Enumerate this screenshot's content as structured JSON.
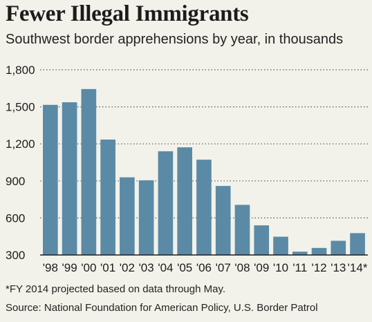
{
  "chart_data": {
    "type": "bar",
    "title": "Fewer Illegal Immigrants",
    "subtitle": "Southwest border apprehensions by year, in thousands",
    "categories": [
      "'98",
      "'99",
      "'00",
      "'01",
      "'02",
      "'03",
      "'04",
      "'05",
      "'06",
      "'07",
      "'08",
      "'09",
      "'10",
      "'11",
      "'12",
      "'13",
      "'14*"
    ],
    "values": [
      1516,
      1537,
      1644,
      1235,
      929,
      905,
      1140,
      1172,
      1072,
      859,
      706,
      540,
      448,
      327,
      357,
      415,
      477
    ],
    "ylim": [
      300,
      1800
    ],
    "yticks": [
      300,
      600,
      900,
      1200,
      1500,
      1800
    ],
    "ytick_labels": [
      "300",
      "600",
      "900",
      "1,200",
      "1,500",
      "1,800"
    ],
    "grid": true,
    "bar_color": "#5b8aa6",
    "footnote": "*FY 2014 projected based on data through May.",
    "source": "Source: National Foundation for American Policy, U.S. Border Patrol"
  }
}
